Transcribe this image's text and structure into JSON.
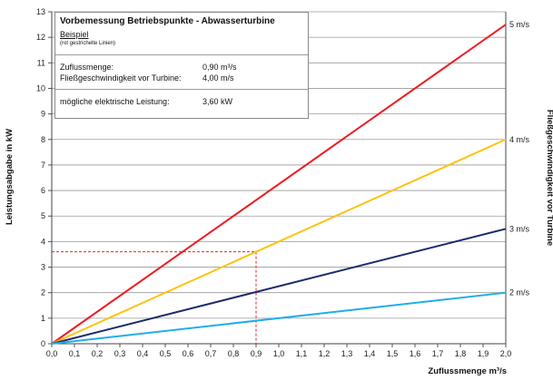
{
  "chart_data": {
    "type": "line",
    "title": "Vorbemessung Betriebspunkte - Abwasserturbine",
    "xlabel": "Zuflussmenge m³/s",
    "ylabel": "Leistungsabgabe in kW",
    "y2label": "Fließgeschwindigkeit vor Turbine",
    "xlim": [
      0,
      2.0
    ],
    "ylim": [
      0,
      13
    ],
    "x_ticks": [
      "0,0",
      "0,1",
      "0,2",
      "0,3",
      "0,4",
      "0,5",
      "0,6",
      "0,7",
      "0,8",
      "0,9",
      "1,0",
      "1,1",
      "1,2",
      "1,3",
      "1,4",
      "1,5",
      "1,6",
      "1,7",
      "1,8",
      "1,9",
      "2,0"
    ],
    "y_ticks": [
      "0",
      "1",
      "2",
      "3",
      "4",
      "5",
      "6",
      "7",
      "8",
      "9",
      "10",
      "11",
      "12",
      "13"
    ],
    "grid": "horizontal",
    "series": [
      {
        "name": "5 m/s",
        "color": "#ee1c24",
        "x": [
          0,
          2.0
        ],
        "y": [
          0,
          12.5
        ]
      },
      {
        "name": "4 m/s",
        "color": "#ffc20e",
        "x": [
          0,
          2.0
        ],
        "y": [
          0,
          8.0
        ]
      },
      {
        "name": "3 m/s",
        "color": "#1b2a6b",
        "x": [
          0,
          2.0
        ],
        "y": [
          0,
          4.5
        ]
      },
      {
        "name": "2 m/s",
        "color": "#1eaee8",
        "x": [
          0,
          2.0
        ],
        "y": [
          0,
          2.0
        ]
      }
    ],
    "example_point": {
      "x": 0.9,
      "y": 3.6,
      "color": "#e8262b",
      "style": "dashed"
    },
    "info_box": {
      "title": "Vorbemessung Betriebspunkte - Abwasserturbine",
      "subtitle": "Beispiel",
      "note": "(rot gestrichelte Linien)",
      "rows": [
        {
          "label": "Zuflussmenge:",
          "value": "0,90 m³/s"
        },
        {
          "label": "Fließgeschwindigkeit vor Turbine:",
          "value": "4,00 m/s"
        },
        {
          "label": "mögliche elektrische Leistung:",
          "value": "3,60 kW"
        }
      ]
    }
  }
}
